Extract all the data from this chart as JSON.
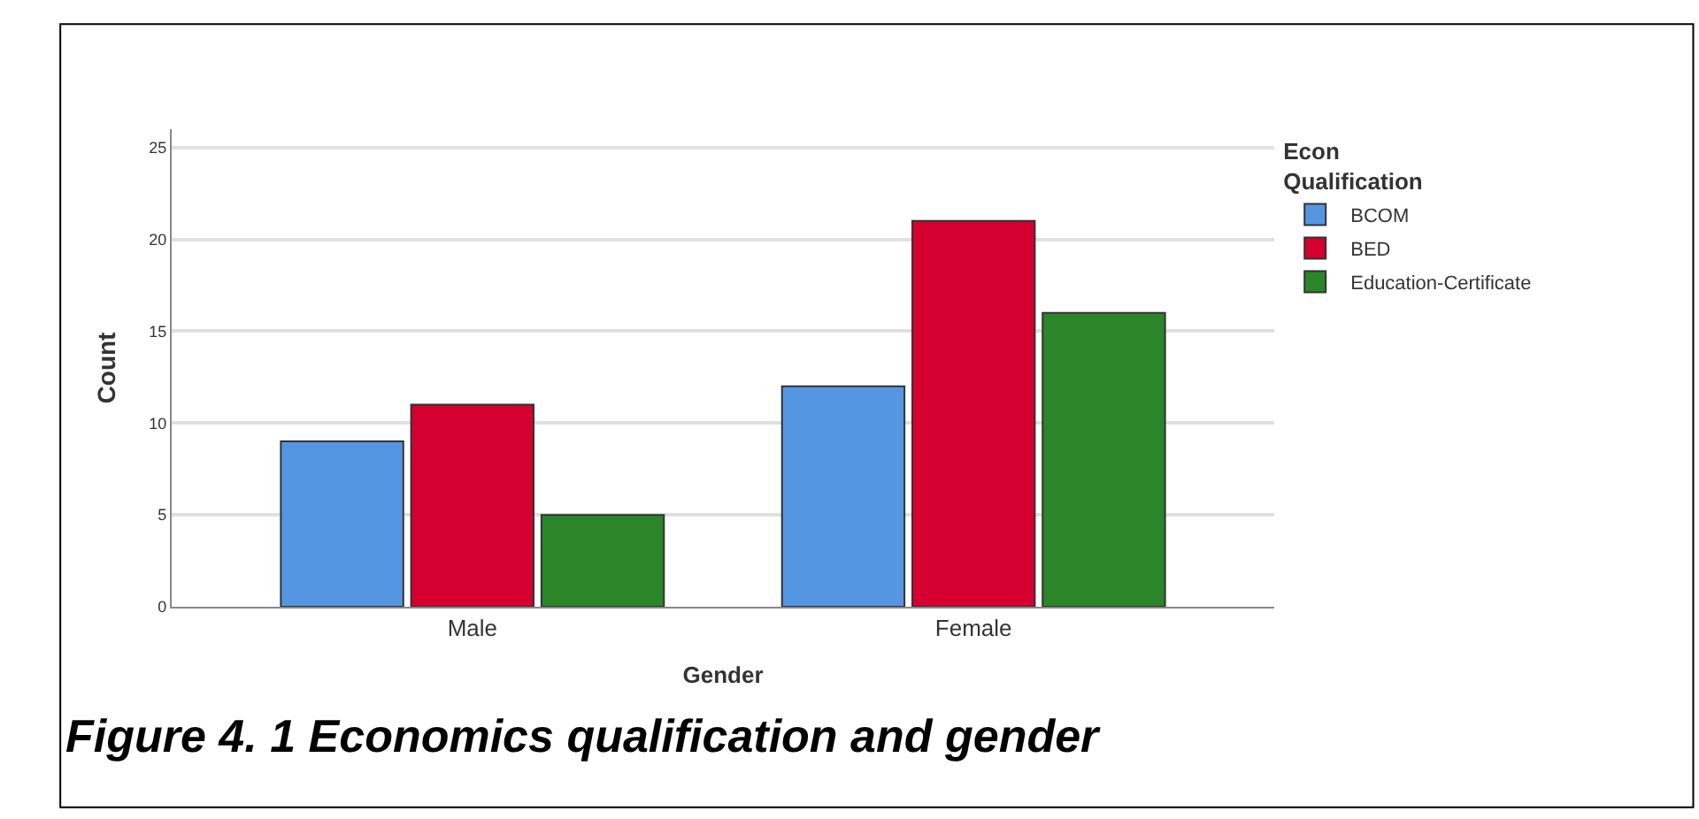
{
  "chart_data": {
    "type": "bar",
    "xlabel": "Gender",
    "ylabel": "Count",
    "legend_title": "Econ\nQualification",
    "categories": [
      "Male",
      "Female"
    ],
    "series": [
      {
        "name": "BCOM",
        "color": "#5596e3",
        "values": [
          9,
          12
        ]
      },
      {
        "name": "BED",
        "color": "#d5002f",
        "values": [
          11,
          21
        ]
      },
      {
        "name": "Education-Certificate",
        "color": "#2a8629",
        "values": [
          5,
          16
        ]
      }
    ],
    "ylim": [
      0,
      26
    ],
    "yticks": [
      0,
      5,
      10,
      15,
      20,
      25
    ],
    "grid": "y",
    "legend": "top right",
    "annotations": [
      "Figure 4. 1 Economics qualification and gender"
    ]
  }
}
